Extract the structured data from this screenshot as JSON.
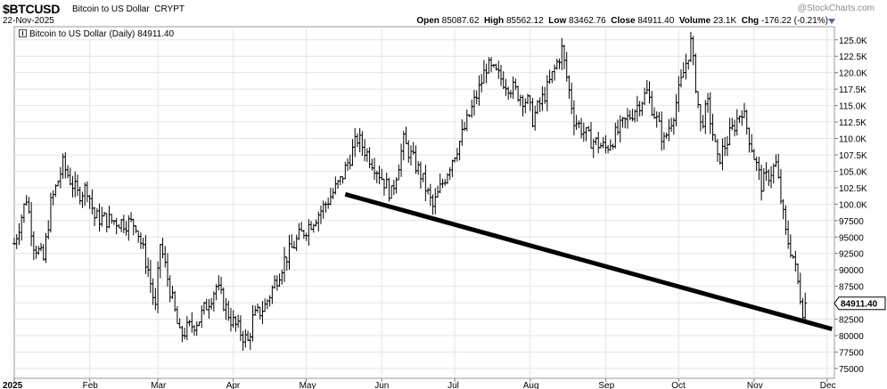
{
  "header": {
    "symbol": "$BTCUSD",
    "name": "Bitcoin to US Dollar",
    "exchange": "CRYPT",
    "date": "22-Nov-2025",
    "watermark": "@StockCharts.com",
    "open_label": "Open",
    "open": "85087.62",
    "high_label": "High",
    "high": "85562.12",
    "low_label": "Low",
    "low": "83462.76",
    "close_label": "Close",
    "close": "84911.40",
    "volume_label": "Volume",
    "volume": "23.1K",
    "chg_label": "Chg",
    "chg": "-176.22 (-0.21%)"
  },
  "legend": "Bitcoin to US Dollar (Daily) 84911.40",
  "chart_data": {
    "type": "ohlc",
    "ylim": [
      73500,
      127000
    ],
    "y_ticks": [
      75000,
      77500,
      80000,
      82500,
      85000,
      87500,
      90000,
      92500,
      95000,
      97500,
      100000,
      102500,
      105000,
      107500,
      110000,
      112500,
      115000,
      117500,
      120000,
      122500,
      125000
    ],
    "y_tick_labels": [
      "75000",
      "77500",
      "80000",
      "82500",
      "85000",
      "87500",
      "90000",
      "92500",
      "95000",
      "97500",
      "100.0K",
      "102.5K",
      "105.0K",
      "107.5K",
      "110.0K",
      "112.5K",
      "115.0K",
      "117.5K",
      "120.0K",
      "122.5K",
      "125.0K"
    ],
    "x_labels": [
      {
        "label": "2025",
        "date": "2025-01-01"
      },
      {
        "label": "Feb",
        "date": "2025-02-01"
      },
      {
        "label": "Mar",
        "date": "2025-03-01"
      },
      {
        "label": "Apr",
        "date": "2025-04-01"
      },
      {
        "label": "May",
        "date": "2025-05-01"
      },
      {
        "label": "Jun",
        "date": "2025-06-01"
      },
      {
        "label": "Jul",
        "date": "2025-07-01"
      },
      {
        "label": "Aug",
        "date": "2025-08-01"
      },
      {
        "label": "Sep",
        "date": "2025-09-01"
      },
      {
        "label": "Oct",
        "date": "2025-10-01"
      },
      {
        "label": "Nov",
        "date": "2025-11-01"
      },
      {
        "label": "Dec",
        "date": "2025-12-01"
      }
    ],
    "x_range": [
      "2025-01-01",
      "2025-12-04"
    ],
    "last_value_label": "84911.40",
    "grid": true,
    "price_path": [
      {
        "date": "2025-01-01",
        "close": 94000
      },
      {
        "date": "2025-01-06",
        "close": 101000
      },
      {
        "date": "2025-01-09",
        "close": 94000
      },
      {
        "date": "2025-01-13",
        "close": 91500
      },
      {
        "date": "2025-01-16",
        "close": 100000
      },
      {
        "date": "2025-01-21",
        "close": 106000
      },
      {
        "date": "2025-01-27",
        "close": 101500
      },
      {
        "date": "2025-01-31",
        "close": 102500
      },
      {
        "date": "2025-02-03",
        "close": 98000
      },
      {
        "date": "2025-02-10",
        "close": 97500
      },
      {
        "date": "2025-02-20",
        "close": 97000
      },
      {
        "date": "2025-02-25",
        "close": 90000
      },
      {
        "date": "2025-02-28",
        "close": 84000
      },
      {
        "date": "2025-03-02",
        "close": 94000
      },
      {
        "date": "2025-03-10",
        "close": 80000
      },
      {
        "date": "2025-03-18",
        "close": 82500
      },
      {
        "date": "2025-03-25",
        "close": 87500
      },
      {
        "date": "2025-03-31",
        "close": 82500
      },
      {
        "date": "2025-04-07",
        "close": 79000
      },
      {
        "date": "2025-04-09",
        "close": 82500
      },
      {
        "date": "2025-04-14",
        "close": 84500
      },
      {
        "date": "2025-04-22",
        "close": 91500
      },
      {
        "date": "2025-04-28",
        "close": 95000
      },
      {
        "date": "2025-05-08",
        "close": 99500
      },
      {
        "date": "2025-05-15",
        "close": 103500
      },
      {
        "date": "2025-05-22",
        "close": 110000
      },
      {
        "date": "2025-05-29",
        "close": 106000
      },
      {
        "date": "2025-06-05",
        "close": 101500
      },
      {
        "date": "2025-06-10",
        "close": 109500
      },
      {
        "date": "2025-06-17",
        "close": 104500
      },
      {
        "date": "2025-06-22",
        "close": 99500
      },
      {
        "date": "2025-06-30",
        "close": 107000
      },
      {
        "date": "2025-07-03",
        "close": 109500
      },
      {
        "date": "2025-07-11",
        "close": 117500
      },
      {
        "date": "2025-07-14",
        "close": 121000
      },
      {
        "date": "2025-07-22",
        "close": 118500
      },
      {
        "date": "2025-07-31",
        "close": 115500
      },
      {
        "date": "2025-08-02",
        "close": 113000
      },
      {
        "date": "2025-08-08",
        "close": 117500
      },
      {
        "date": "2025-08-14",
        "close": 123500
      },
      {
        "date": "2025-08-19",
        "close": 113000
      },
      {
        "date": "2025-08-25",
        "close": 110000
      },
      {
        "date": "2025-09-01",
        "close": 108500
      },
      {
        "date": "2025-09-10",
        "close": 113000
      },
      {
        "date": "2025-09-18",
        "close": 117000
      },
      {
        "date": "2025-09-25",
        "close": 109500
      },
      {
        "date": "2025-09-29",
        "close": 114000
      },
      {
        "date": "2025-10-06",
        "close": 124500
      },
      {
        "date": "2025-10-10",
        "close": 112000
      },
      {
        "date": "2025-10-13",
        "close": 115000
      },
      {
        "date": "2025-10-17",
        "close": 106500
      },
      {
        "date": "2025-10-27",
        "close": 114500
      },
      {
        "date": "2025-11-04",
        "close": 103000
      },
      {
        "date": "2025-11-10",
        "close": 106000
      },
      {
        "date": "2025-11-14",
        "close": 95500
      },
      {
        "date": "2025-11-17",
        "close": 92000
      },
      {
        "date": "2025-11-21",
        "close": 84000
      },
      {
        "date": "2025-11-22",
        "close": 84911
      }
    ],
    "trendline": {
      "from": {
        "date": "2025-05-17",
        "value": 101500
      },
      "to": {
        "date": "2025-12-03",
        "value": 81000
      }
    }
  }
}
